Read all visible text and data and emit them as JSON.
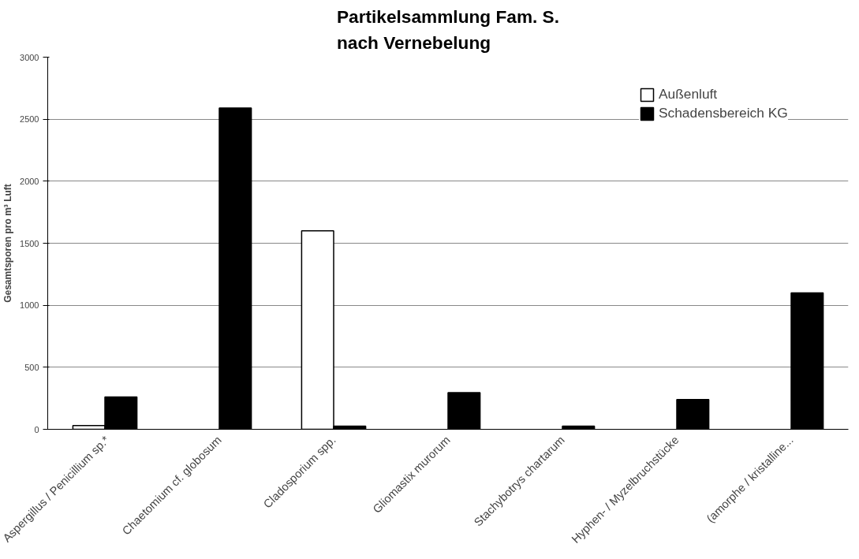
{
  "chart_data": {
    "type": "bar",
    "title": "Partikelsammlung Fam. S.\nnach Vernebelung",
    "ylabel": "Gesamtsporen pro m³ Luft",
    "categories": [
      "Aspergillus / Penicillium sp.*",
      "Chaetomium cf. globosum",
      "Cladosporium spp.",
      "Gliomastix murorum",
      "Stachybotrys chartarum",
      "Hyphen- / Myzelbruchstücke",
      "(amorphe / kristalline..."
    ],
    "series": [
      {
        "name": "Außenluft",
        "color": "#ffffff",
        "values": [
          30,
          0,
          1600,
          0,
          0,
          0,
          0
        ]
      },
      {
        "name": "Schadensbereich KG",
        "color": "#000000",
        "values": [
          260,
          2590,
          25,
          295,
          25,
          240,
          1100
        ]
      }
    ],
    "ylim": [
      0,
      3000
    ],
    "yticks": [
      0,
      500,
      1000,
      1500,
      2000,
      2500,
      3000
    ],
    "grid": "y",
    "legend": "right"
  }
}
